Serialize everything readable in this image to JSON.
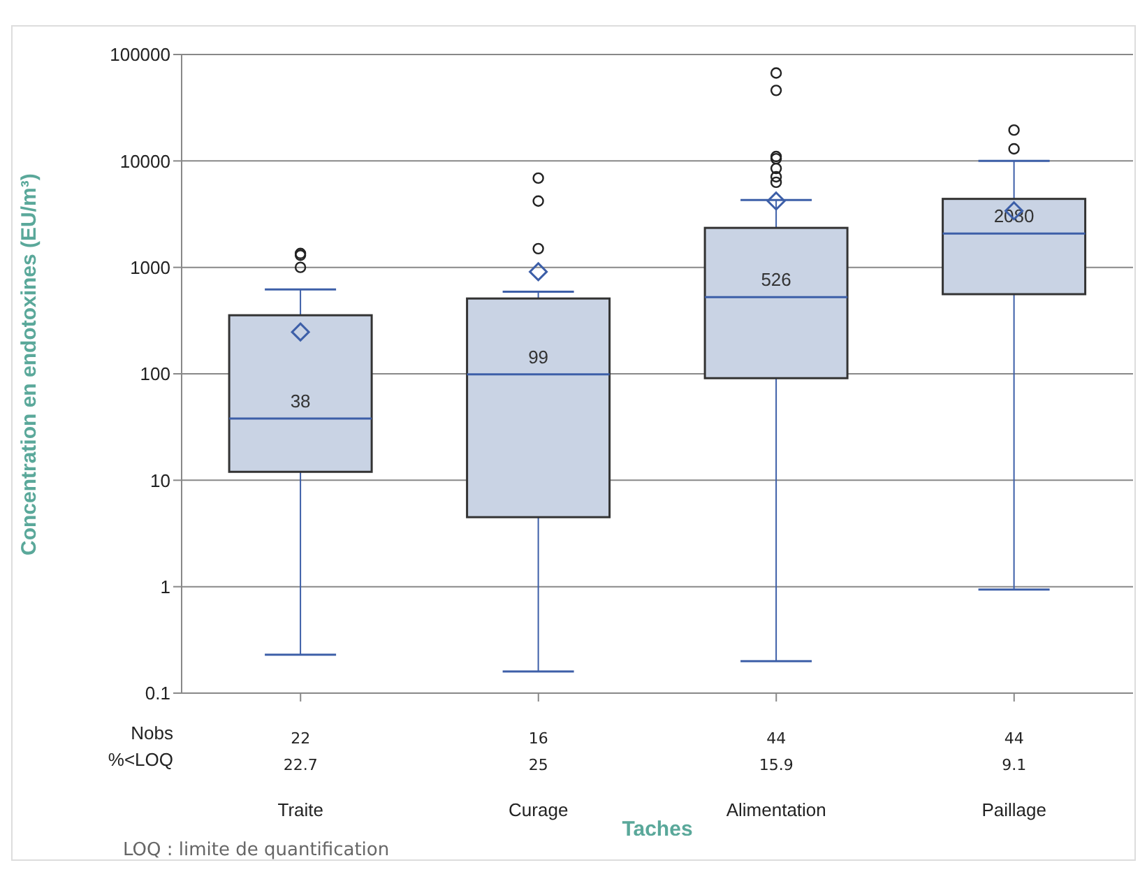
{
  "chart_data": {
    "type": "box",
    "xlabel": "Taches",
    "ylabel": "Concentration en endotoxines (EU/m³)",
    "categories": [
      "Traite",
      "Curage",
      "Alimentation",
      "Paillage"
    ],
    "boxes": [
      {
        "low": 0.23,
        "q1": 12,
        "median": 38,
        "q3": 355,
        "high": 620,
        "mean": 247,
        "outliers": [
          1000,
          1300,
          1350
        ]
      },
      {
        "low": 0.16,
        "q1": 4.5,
        "median": 99,
        "q3": 510,
        "high": 590,
        "mean": 910,
        "outliers": [
          1500,
          4200,
          6900
        ]
      },
      {
        "low": 0.2,
        "q1": 91,
        "median": 526,
        "q3": 2350,
        "high": 4300,
        "mean": 4200,
        "outliers": [
          6300,
          7100,
          8500,
          10500,
          11000,
          46000,
          67000
        ]
      },
      {
        "low": 0.94,
        "q1": 560,
        "median": 2080,
        "q3": 4400,
        "high": 10000,
        "mean": 3400,
        "outliers": [
          13000,
          19500
        ]
      }
    ],
    "color": "#c9d3e4",
    "log": true,
    "ylim": [
      0.1,
      100000
    ],
    "yticks": [
      0.1,
      1,
      10,
      100,
      1000,
      10000,
      100000
    ],
    "grid": "y",
    "value_labels": [
      "38",
      "99",
      "526",
      "2080"
    ],
    "annotations": [
      "Nobs",
      "%<LOQ",
      "22",
      "16",
      "44",
      "44",
      "22.7",
      "25",
      "15.9",
      "9.1",
      "LOQ : limite de quantification"
    ]
  }
}
